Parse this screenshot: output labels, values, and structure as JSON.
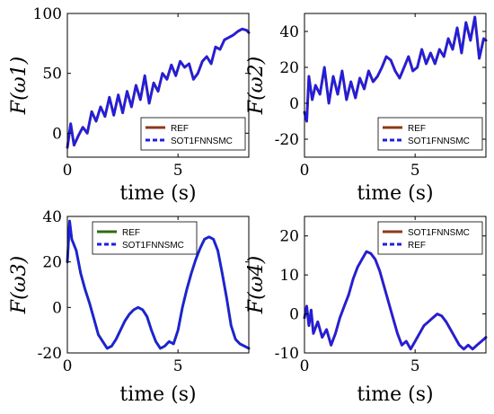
{
  "chart_data": [
    {
      "type": "line",
      "ylabel": "F(ω1)",
      "xlabel": "time (s)",
      "xlim": [
        0,
        8.2
      ],
      "ylim": [
        -20,
        100
      ],
      "xticks": [
        0,
        5
      ],
      "yticks": [
        0,
        50,
        100
      ],
      "legend_position": "bottom-right",
      "series": [
        {
          "name": "REF",
          "color": "#8b3a1a",
          "style": "solid",
          "x": [
            0,
            0.15,
            0.3,
            0.5,
            0.7,
            0.9,
            1.1,
            1.3,
            1.5,
            1.7,
            1.9,
            2.1,
            2.3,
            2.5,
            2.7,
            2.9,
            3.1,
            3.3,
            3.5,
            3.7,
            3.9,
            4.1,
            4.3,
            4.5,
            4.7,
            4.9,
            5.1,
            5.3,
            5.5,
            5.7,
            5.9,
            6.1,
            6.3,
            6.5,
            6.7,
            6.9,
            7.1,
            7.3,
            7.5,
            7.7,
            7.9,
            8.1,
            8.2
          ],
          "y": [
            -12,
            8,
            -10,
            -2,
            5,
            0,
            18,
            10,
            22,
            14,
            30,
            15,
            32,
            17,
            35,
            22,
            40,
            28,
            48,
            25,
            42,
            35,
            50,
            45,
            57,
            48,
            60,
            55,
            58,
            45,
            50,
            60,
            64,
            58,
            72,
            70,
            78,
            80,
            82,
            85,
            87,
            86,
            84
          ]
        },
        {
          "name": "SOT1FNNSMC",
          "color": "#1e1ee6",
          "style": "dashed",
          "x": [
            0,
            0.15,
            0.3,
            0.5,
            0.7,
            0.9,
            1.1,
            1.3,
            1.5,
            1.7,
            1.9,
            2.1,
            2.3,
            2.5,
            2.7,
            2.9,
            3.1,
            3.3,
            3.5,
            3.7,
            3.9,
            4.1,
            4.3,
            4.5,
            4.7,
            4.9,
            5.1,
            5.3,
            5.5,
            5.7,
            5.9,
            6.1,
            6.3,
            6.5,
            6.7,
            6.9,
            7.1,
            7.3,
            7.5,
            7.7,
            7.9,
            8.1,
            8.2
          ],
          "y": [
            -12,
            8,
            -10,
            -2,
            5,
            0,
            18,
            10,
            22,
            14,
            30,
            15,
            32,
            17,
            35,
            22,
            40,
            28,
            48,
            25,
            42,
            35,
            50,
            45,
            57,
            48,
            60,
            55,
            58,
            45,
            50,
            60,
            64,
            58,
            72,
            70,
            78,
            80,
            82,
            85,
            87,
            86,
            84
          ]
        }
      ]
    },
    {
      "type": "line",
      "ylabel": "F(ω2)",
      "xlabel": "time (s)",
      "xlim": [
        0,
        8.2
      ],
      "ylim": [
        -30,
        50
      ],
      "xticks": [
        0,
        5
      ],
      "yticks": [
        -20,
        0,
        20,
        40
      ],
      "legend_position": "bottom-right",
      "series": [
        {
          "name": "REF",
          "color": "#8b3a1a",
          "style": "solid",
          "x": [
            0,
            0.1,
            0.2,
            0.35,
            0.5,
            0.7,
            0.9,
            1.1,
            1.3,
            1.5,
            1.7,
            1.9,
            2.1,
            2.3,
            2.5,
            2.7,
            2.9,
            3.1,
            3.3,
            3.5,
            3.7,
            3.9,
            4.1,
            4.3,
            4.5,
            4.7,
            4.9,
            5.1,
            5.3,
            5.5,
            5.7,
            5.9,
            6.1,
            6.3,
            6.5,
            6.7,
            6.9,
            7.1,
            7.3,
            7.5,
            7.7,
            7.9,
            8.1,
            8.2
          ],
          "y": [
            -5,
            -10,
            15,
            2,
            10,
            5,
            20,
            0,
            15,
            5,
            18,
            2,
            12,
            3,
            14,
            8,
            18,
            12,
            15,
            20,
            26,
            24,
            18,
            14,
            20,
            26,
            18,
            20,
            30,
            22,
            28,
            22,
            30,
            26,
            36,
            30,
            42,
            28,
            45,
            35,
            48,
            25,
            36,
            35
          ]
        },
        {
          "name": "SOT1FNNSMC",
          "color": "#1e1ee6",
          "style": "dashed",
          "x": [
            0,
            0.1,
            0.2,
            0.35,
            0.5,
            0.7,
            0.9,
            1.1,
            1.3,
            1.5,
            1.7,
            1.9,
            2.1,
            2.3,
            2.5,
            2.7,
            2.9,
            3.1,
            3.3,
            3.5,
            3.7,
            3.9,
            4.1,
            4.3,
            4.5,
            4.7,
            4.9,
            5.1,
            5.3,
            5.5,
            5.7,
            5.9,
            6.1,
            6.3,
            6.5,
            6.7,
            6.9,
            7.1,
            7.3,
            7.5,
            7.7,
            7.9,
            8.1,
            8.2
          ],
          "y": [
            -5,
            -10,
            15,
            2,
            10,
            5,
            20,
            0,
            15,
            5,
            18,
            2,
            12,
            3,
            14,
            8,
            18,
            12,
            15,
            20,
            26,
            24,
            18,
            14,
            20,
            26,
            18,
            20,
            30,
            22,
            28,
            22,
            30,
            26,
            36,
            30,
            42,
            28,
            45,
            35,
            48,
            25,
            36,
            35
          ]
        }
      ]
    },
    {
      "type": "line",
      "ylabel": "F(ω3)",
      "xlabel": "time (s)",
      "xlim": [
        0,
        8.2
      ],
      "ylim": [
        -20,
        40
      ],
      "xticks": [
        0,
        5
      ],
      "yticks": [
        -20,
        0,
        20,
        40
      ],
      "legend_position": "top-right",
      "series": [
        {
          "name": "REF",
          "color": "#2e6b12",
          "style": "solid",
          "x": [
            0,
            0.1,
            0.2,
            0.4,
            0.6,
            0.8,
            1.0,
            1.2,
            1.4,
            1.6,
            1.8,
            2.0,
            2.2,
            2.4,
            2.6,
            2.8,
            3.0,
            3.2,
            3.4,
            3.6,
            3.8,
            4.0,
            4.2,
            4.4,
            4.6,
            4.8,
            5.0,
            5.2,
            5.4,
            5.6,
            5.8,
            6.0,
            6.2,
            6.4,
            6.6,
            6.8,
            7.0,
            7.2,
            7.4,
            7.6,
            7.8,
            8.0,
            8.2
          ],
          "y": [
            20,
            38,
            30,
            25,
            15,
            8,
            2,
            -5,
            -12,
            -15,
            -18,
            -17,
            -14,
            -10,
            -6,
            -3,
            -1,
            0,
            -1,
            -4,
            -10,
            -15,
            -18,
            -17,
            -15,
            -16,
            -10,
            0,
            8,
            15,
            21,
            26,
            30,
            31,
            30,
            25,
            15,
            4,
            -8,
            -14,
            -16,
            -17,
            -18
          ]
        },
        {
          "name": "SOT1FNNSMC",
          "color": "#1e1ee6",
          "style": "dashed",
          "x": [
            0,
            0.1,
            0.2,
            0.4,
            0.6,
            0.8,
            1.0,
            1.2,
            1.4,
            1.6,
            1.8,
            2.0,
            2.2,
            2.4,
            2.6,
            2.8,
            3.0,
            3.2,
            3.4,
            3.6,
            3.8,
            4.0,
            4.2,
            4.4,
            4.6,
            4.8,
            5.0,
            5.2,
            5.4,
            5.6,
            5.8,
            6.0,
            6.2,
            6.4,
            6.6,
            6.8,
            7.0,
            7.2,
            7.4,
            7.6,
            7.8,
            8.0,
            8.2
          ],
          "y": [
            20,
            38,
            30,
            25,
            15,
            8,
            2,
            -5,
            -12,
            -15,
            -18,
            -17,
            -14,
            -10,
            -6,
            -3,
            -1,
            0,
            -1,
            -4,
            -10,
            -15,
            -18,
            -17,
            -15,
            -16,
            -10,
            0,
            8,
            15,
            21,
            26,
            30,
            31,
            30,
            25,
            15,
            4,
            -8,
            -14,
            -16,
            -17,
            -18
          ]
        }
      ]
    },
    {
      "type": "line",
      "ylabel": "F(ω4)",
      "xlabel": "time (s)",
      "xlim": [
        0,
        8.2
      ],
      "ylim": [
        -10,
        25
      ],
      "xticks": [
        0,
        5
      ],
      "yticks": [
        -10,
        0,
        10,
        20
      ],
      "legend_position": "top-right",
      "series": [
        {
          "name": "SOT1FNNSMC",
          "color": "#8b3a1a",
          "style": "solid",
          "x": [
            0,
            0.1,
            0.2,
            0.3,
            0.4,
            0.6,
            0.8,
            1.0,
            1.2,
            1.4,
            1.6,
            1.8,
            2.0,
            2.2,
            2.4,
            2.6,
            2.8,
            3.0,
            3.2,
            3.4,
            3.6,
            3.8,
            4.0,
            4.2,
            4.4,
            4.6,
            4.8,
            5.0,
            5.2,
            5.4,
            5.6,
            5.8,
            6.0,
            6.2,
            6.4,
            6.6,
            6.8,
            7.0,
            7.2,
            7.4,
            7.6,
            7.8,
            8.0,
            8.2
          ],
          "y": [
            -1,
            2,
            -3,
            1,
            -5,
            -2,
            -6,
            -4,
            -8,
            -5,
            -1,
            2,
            5,
            9,
            12,
            14,
            16,
            15.5,
            14,
            11,
            7,
            3,
            -1,
            -5,
            -8,
            -7,
            -9,
            -7,
            -5,
            -3,
            -2,
            -1,
            0,
            -0.5,
            -2,
            -4,
            -6,
            -8,
            -9,
            -8,
            -9,
            -8,
            -7,
            -6
          ]
        },
        {
          "name": "REF",
          "color": "#1e1ee6",
          "style": "dashed",
          "x": [
            0,
            0.1,
            0.2,
            0.3,
            0.4,
            0.6,
            0.8,
            1.0,
            1.2,
            1.4,
            1.6,
            1.8,
            2.0,
            2.2,
            2.4,
            2.6,
            2.8,
            3.0,
            3.2,
            3.4,
            3.6,
            3.8,
            4.0,
            4.2,
            4.4,
            4.6,
            4.8,
            5.0,
            5.2,
            5.4,
            5.6,
            5.8,
            6.0,
            6.2,
            6.4,
            6.6,
            6.8,
            7.0,
            7.2,
            7.4,
            7.6,
            7.8,
            8.0,
            8.2
          ],
          "y": [
            -1,
            2,
            -3,
            1,
            -5,
            -2,
            -6,
            -4,
            -8,
            -5,
            -1,
            2,
            5,
            9,
            12,
            14,
            16,
            15.5,
            14,
            11,
            7,
            3,
            -1,
            -5,
            -8,
            -7,
            -9,
            -7,
            -5,
            -3,
            -2,
            -1,
            0,
            -0.5,
            -2,
            -4,
            -6,
            -8,
            -9,
            -8,
            -9,
            -8,
            -7,
            -6
          ]
        }
      ]
    }
  ]
}
